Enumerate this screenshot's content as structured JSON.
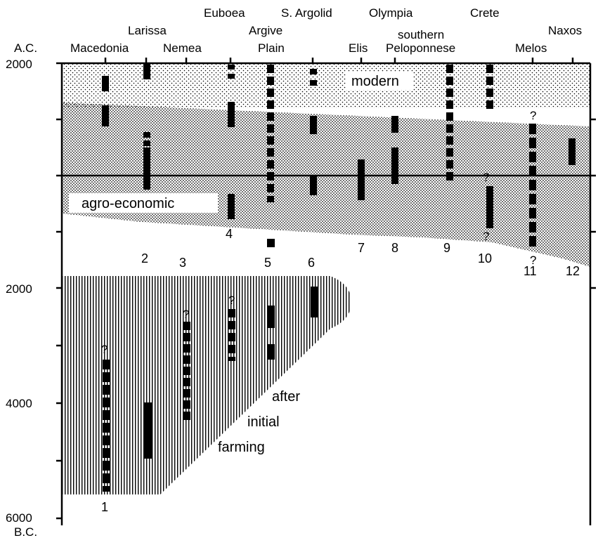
{
  "axis": {
    "top_label": "A.C.",
    "bottom_label": "B.C.",
    "tick_labels": [
      "2000",
      "2000",
      "4000",
      "6000"
    ]
  },
  "regions": [
    {
      "n": "1",
      "name": "Macedonia"
    },
    {
      "n": "2",
      "name": "Larissa"
    },
    {
      "n": "3",
      "name": "Nemea"
    },
    {
      "n": "4",
      "name": "Euboea"
    },
    {
      "n": "5",
      "name": "Argive Plain"
    },
    {
      "n": "6",
      "name": "S. Argolid"
    },
    {
      "n": "7",
      "name": "Elis"
    },
    {
      "n": "8",
      "name": "Olympia"
    },
    {
      "n": "9",
      "name": "southern Peloponnese"
    },
    {
      "n": "10",
      "name": "Crete"
    },
    {
      "n": "11",
      "name": "Melos"
    },
    {
      "n": "12",
      "name": "Naxos"
    }
  ],
  "zones": {
    "modern": "modern",
    "agro_economic": "agro-economic",
    "after_initial_farming": [
      "after",
      "initial",
      "farming"
    ]
  },
  "uncertainty_mark": "?"
}
